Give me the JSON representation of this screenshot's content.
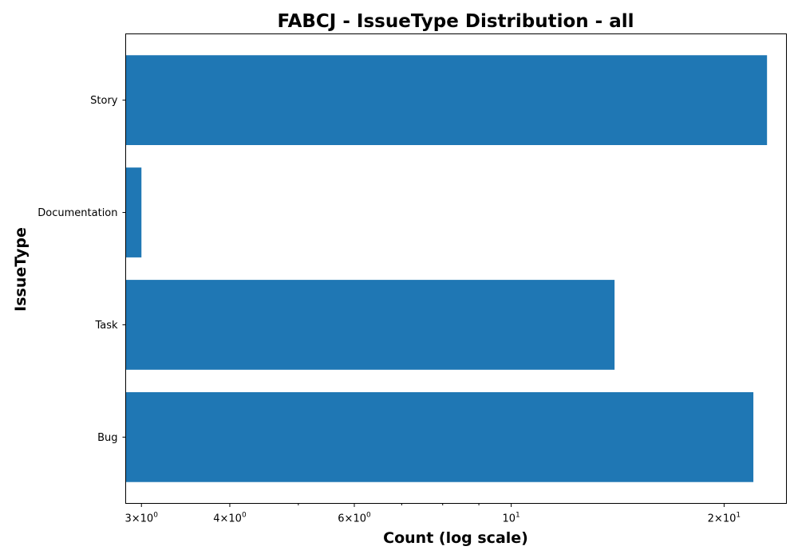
{
  "chart_data": {
    "type": "bar",
    "orientation": "horizontal",
    "title": "FABCJ - IssueType Distribution - all",
    "xlabel": "Count (log scale)",
    "ylabel": "IssueType",
    "x_scale": "log",
    "xlim": [
      2.85,
      24.5
    ],
    "categories": [
      "Story",
      "Documentation",
      "Task",
      "Bug"
    ],
    "values": [
      23,
      3,
      14,
      22
    ],
    "bar_color": "#1f77b4",
    "grid": false,
    "legend": "none",
    "x_ticks": [
      {
        "value": 3,
        "base": "3×10",
        "exp": "0"
      },
      {
        "value": 4,
        "base": "4×10",
        "exp": "0"
      },
      {
        "value": 6,
        "base": "6×10",
        "exp": "0"
      },
      {
        "value": 10,
        "base": "10",
        "exp": "1"
      },
      {
        "value": 20,
        "base": "2×10",
        "exp": "1"
      }
    ],
    "x_minor_ticks": [
      5,
      7,
      8,
      9
    ]
  }
}
